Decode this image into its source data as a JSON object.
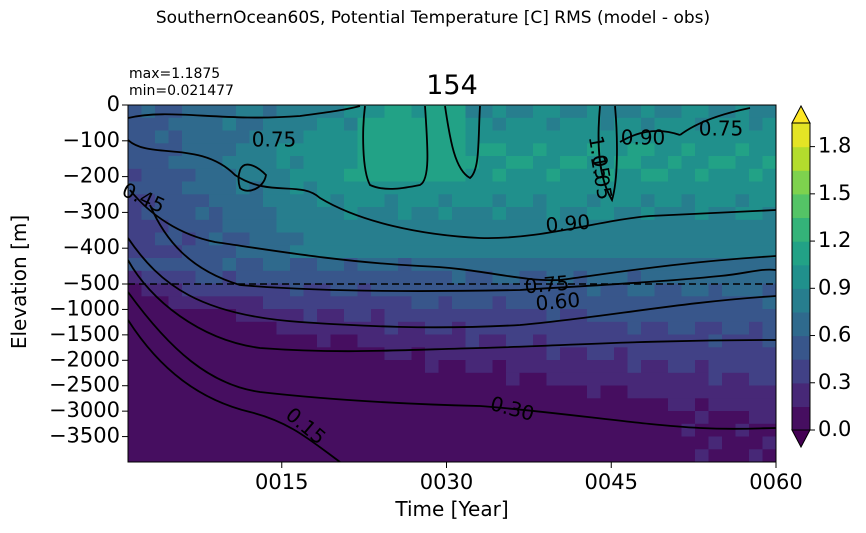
{
  "suptitle": "SouthernOcean60S, Potential Temperature [C] RMS (model - obs)",
  "panel_title": "154",
  "stats": {
    "max": "max=1.1875",
    "min": "min=0.021477"
  },
  "chart_data": {
    "type": "heatmap",
    "xlabel": "Time [Year]",
    "ylabel": "Elevation [m]",
    "x_ticks": [
      "0015",
      "0030",
      "0045",
      "0060"
    ],
    "xlim": [
      1,
      60
    ],
    "y_ticks_upper": [
      "0",
      "−100",
      "−200",
      "−300",
      "−400",
      "−500"
    ],
    "y_ticks_lower": [
      "−1000",
      "−1500",
      "−2000",
      "−2500",
      "−3000",
      "−3500"
    ],
    "y_break_at": -500,
    "colorbar": {
      "colormap": "viridis",
      "ticks": [
        "0.0",
        "0.3",
        "0.6",
        "0.9",
        "1.2",
        "1.5",
        "1.8"
      ],
      "range": [
        0.0,
        1.95
      ],
      "extend": "both"
    },
    "contour_labels": [
      "0.75",
      "0.90",
      "0.75",
      "1.05",
      "1.05",
      "0.45",
      "0.90",
      "0.75",
      "0.60",
      "0.30",
      "0.15"
    ],
    "colors": {
      "low": "#440154",
      "mid": "#21918c",
      "high": "#fde725"
    }
  }
}
